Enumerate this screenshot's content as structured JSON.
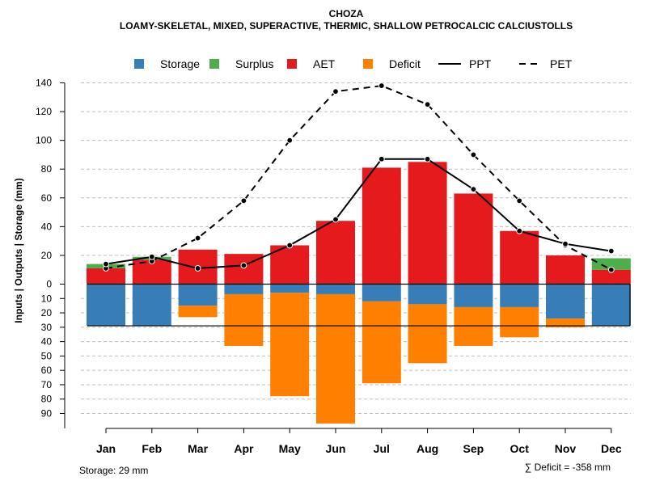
{
  "chart_data": {
    "type": "bar",
    "title": "CHOZA",
    "subtitle": "LOAMY-SKELETAL, MIXED, SUPERACTIVE, THERMIC, SHALLOW PETROCALCIC CALCIUSTOLLS",
    "ylabel": "Inputs | Outputs | Storage    (mm)",
    "categories": [
      "Jan",
      "Feb",
      "Mar",
      "Apr",
      "May",
      "Jun",
      "Jul",
      "Aug",
      "Sep",
      "Oct",
      "Nov",
      "Dec"
    ],
    "y_upper_ticks": [
      0,
      20,
      40,
      60,
      80,
      100,
      120,
      140
    ],
    "y_lower_ticks": [
      10,
      20,
      30,
      40,
      50,
      60,
      70,
      80,
      90
    ],
    "ylim_upper": [
      0,
      140
    ],
    "ylim_lower": [
      0,
      100
    ],
    "storage_capacity": 29,
    "legend": [
      {
        "key": "storage",
        "label": "Storage",
        "type": "box",
        "color": "#377EB8"
      },
      {
        "key": "surplus",
        "label": "Surplus",
        "type": "box",
        "color": "#4DAF4A"
      },
      {
        "key": "aet",
        "label": "AET",
        "type": "box",
        "color": "#E41A1C"
      },
      {
        "key": "deficit",
        "label": "Deficit",
        "type": "box",
        "color": "#FF7F00"
      },
      {
        "key": "ppt",
        "label": "PPT",
        "type": "solid",
        "color": "#000000"
      },
      {
        "key": "pet",
        "label": "PET",
        "type": "dashed",
        "color": "#000000"
      }
    ],
    "series": [
      {
        "name": "AET",
        "values": [
          11,
          17,
          24,
          21,
          27,
          44,
          81,
          85,
          63,
          37,
          20,
          10
        ]
      },
      {
        "name": "Surplus",
        "values": [
          3,
          2,
          0,
          0,
          0,
          0,
          0,
          0,
          0,
          0,
          0,
          8
        ]
      },
      {
        "name": "Storage",
        "values": [
          29,
          29,
          15,
          7,
          6,
          7,
          12,
          14,
          16,
          16,
          24,
          29
        ]
      },
      {
        "name": "Deficit",
        "values": [
          0,
          0,
          8,
          36,
          72,
          90,
          57,
          41,
          27,
          21,
          6,
          0
        ]
      },
      {
        "name": "PPT",
        "values": [
          14,
          19,
          11,
          13,
          27,
          45,
          87,
          87,
          66,
          37,
          28,
          23
        ]
      },
      {
        "name": "PET",
        "values": [
          11,
          16,
          32,
          58,
          100,
          134,
          138,
          125,
          90,
          58,
          27,
          10
        ]
      }
    ]
  },
  "footer": {
    "storage_note": "Storage: 29 mm",
    "deficit_note": "∑ Deficit = -358 mm"
  }
}
